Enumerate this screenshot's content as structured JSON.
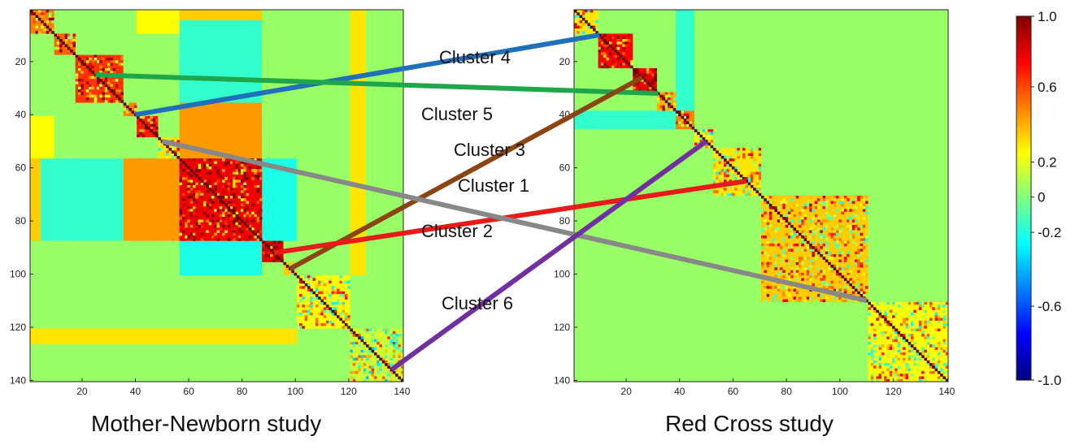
{
  "chart_data": [
    {
      "type": "heatmap",
      "title": "Mother-Newborn study",
      "xlim": [
        1,
        140
      ],
      "ylim": [
        1,
        140
      ],
      "xticks": [
        20,
        40,
        60,
        80,
        100,
        120,
        140
      ],
      "yticks": [
        20,
        40,
        60,
        80,
        100,
        120,
        140
      ],
      "blocks": [
        {
          "range": [
            1,
            9
          ],
          "value": 0.5
        },
        {
          "range": [
            10,
            17
          ],
          "value": 0.55
        },
        {
          "range": [
            18,
            35
          ],
          "value": 0.65
        },
        {
          "range": [
            36,
            40
          ],
          "value": 0.5
        },
        {
          "range": [
            41,
            48
          ],
          "value": 0.7
        },
        {
          "range": [
            49,
            56
          ],
          "value": 0.3
        },
        {
          "range": [
            57,
            87
          ],
          "value": 0.78
        },
        {
          "range": [
            88,
            95
          ],
          "value": 0.82
        },
        {
          "range": [
            96,
            100
          ],
          "value": 0.35
        },
        {
          "range": [
            101,
            120
          ],
          "value": 0.25
        },
        {
          "range": [
            121,
            140
          ],
          "value": 0.15
        }
      ],
      "off_diagonal": [
        {
          "rows": [
            57,
            87
          ],
          "cols": [
            1,
            9
          ],
          "value": 0.45
        },
        {
          "rows": [
            57,
            87
          ],
          "cols": [
            10,
            17
          ],
          "value": -0.2
        },
        {
          "rows": [
            57,
            87
          ],
          "cols": [
            36,
            48
          ],
          "value": 0.45
        },
        {
          "rows": [
            57,
            87
          ],
          "cols": [
            49,
            56
          ],
          "value": 0.3
        },
        {
          "rows": [
            41,
            56
          ],
          "cols": [
            57,
            87
          ],
          "value": 0.45
        },
        {
          "rows": [
            1,
            35
          ],
          "cols": [
            57,
            87
          ],
          "value": -0.15
        },
        {
          "rows": [
            1,
            9
          ],
          "cols": [
            41,
            56
          ],
          "value": 0.25
        },
        {
          "rows": [
            88,
            100
          ],
          "cols": [
            57,
            87
          ],
          "value": -0.2
        },
        {
          "rows": [
            88,
            100
          ],
          "cols": [
            1,
            56
          ],
          "value": 0.05
        },
        {
          "rows": [
            101,
            140
          ],
          "cols": [
            1,
            100
          ],
          "value": 0.05
        },
        {
          "rows": [
            121,
            126
          ],
          "cols": [
            1,
            100
          ],
          "value": 0.3
        },
        {
          "rows": [
            1,
            4
          ],
          "cols": [
            57,
            87
          ],
          "value": 0.35
        }
      ]
    },
    {
      "type": "heatmap",
      "title": "Red Cross study",
      "xlim": [
        1,
        140
      ],
      "ylim": [
        1,
        140
      ],
      "xticks": [
        20,
        40,
        60,
        80,
        100,
        120,
        140
      ],
      "yticks": [
        20,
        40,
        60,
        80,
        100,
        120,
        140
      ],
      "blocks": [
        {
          "range": [
            1,
            9
          ],
          "value": 0.3
        },
        {
          "range": [
            10,
            22
          ],
          "value": 0.75
        },
        {
          "range": [
            23,
            31
          ],
          "value": 0.8
        },
        {
          "range": [
            32,
            38
          ],
          "value": 0.4
        },
        {
          "range": [
            39,
            45
          ],
          "value": 0.5
        },
        {
          "range": [
            46,
            52
          ],
          "value": 0.2
        },
        {
          "range": [
            53,
            70
          ],
          "value": 0.3
        },
        {
          "range": [
            71,
            110
          ],
          "value": 0.35
        },
        {
          "range": [
            111,
            140
          ],
          "value": 0.25
        }
      ],
      "off_diagonal": [
        {
          "rows": [
            1,
            52
          ],
          "cols": [
            53,
            140
          ],
          "value": 0.05
        },
        {
          "rows": [
            39,
            45
          ],
          "cols": [
            1,
            38
          ],
          "value": -0.15
        },
        {
          "rows": [
            9,
            31
          ],
          "cols": [
            39,
            45
          ],
          "value": -0.15
        },
        {
          "rows": [
            53,
            140
          ],
          "cols": [
            1,
            52
          ],
          "value": 0.05
        }
      ]
    }
  ],
  "colorbar": {
    "ticks": [
      "1.0",
      "0.6",
      "0.2",
      "0",
      "-0.2",
      "-0.6",
      "-1.0"
    ],
    "values": [
      1.0,
      0.6,
      0.2,
      0,
      -0.2,
      -0.6,
      -1.0
    ]
  },
  "clusters": [
    {
      "label": "Cluster 4",
      "color": "#1f6fba",
      "left_index": 40,
      "right_index": 10
    },
    {
      "label": "Cluster 5",
      "color": "#1fa64a",
      "left_index": 25,
      "right_index": 32
    },
    {
      "label": "Cluster 3",
      "color": "#8b4513",
      "left_index": 98,
      "right_index": 26
    },
    {
      "label": "Cluster 1",
      "color": "#e81a1a",
      "left_index": 92,
      "right_index": 65
    },
    {
      "label": "Cluster 2",
      "color": "#888888",
      "left_index": 50,
      "right_index": 110
    },
    {
      "label": "Cluster 6",
      "color": "#7030a0",
      "left_index": 136,
      "right_index": 50
    }
  ],
  "titles": {
    "left": "Mother-Newborn study",
    "right": "Red Cross study"
  }
}
